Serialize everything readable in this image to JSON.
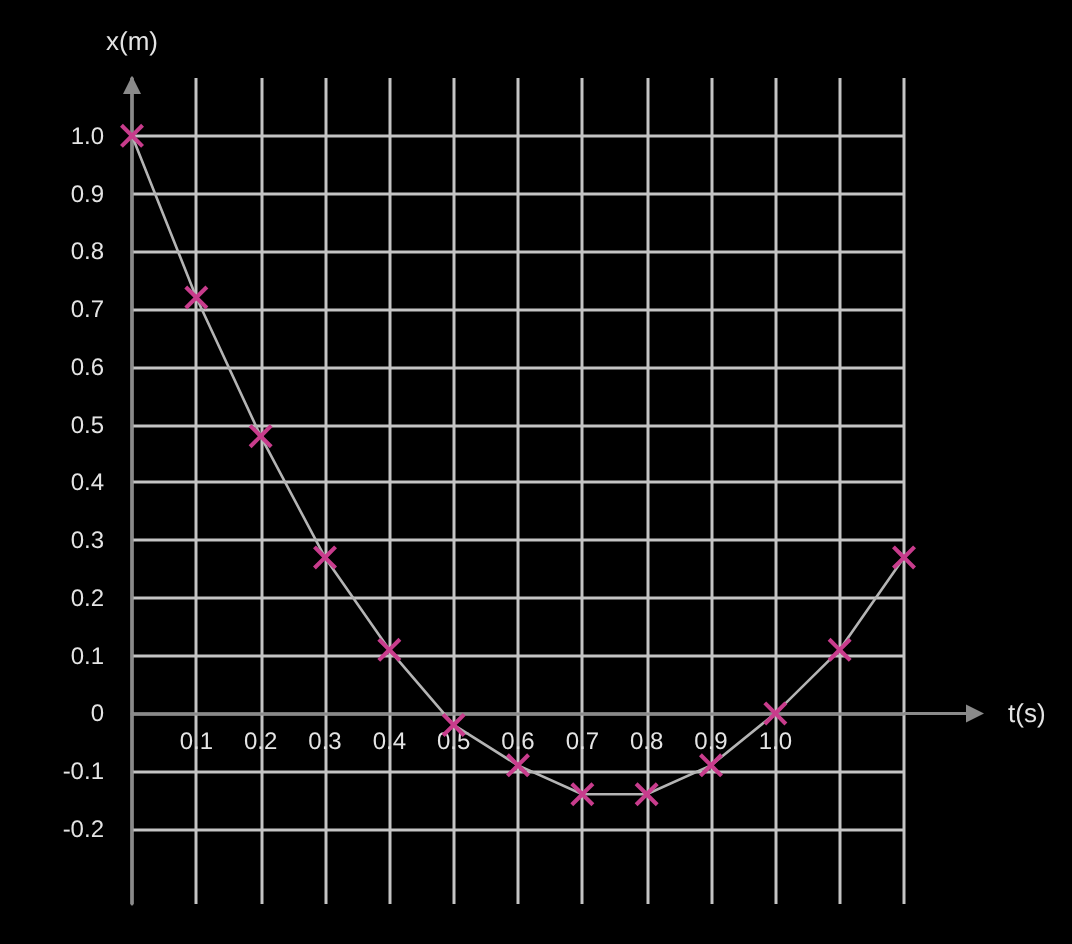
{
  "chart_data": {
    "type": "line",
    "xlabel": "t(s)",
    "ylabel": "x(m)",
    "x": [
      0,
      0.1,
      0.2,
      0.3,
      0.4,
      0.5,
      0.6,
      0.7,
      0.8,
      0.9,
      1.0,
      1.1,
      1.2
    ],
    "series": [
      {
        "color": "#b4b4b4",
        "colors": [
          "#c83c8c",
          "#c83c8c",
          "#c83c8c",
          "#c83c8c",
          "#c83c8c",
          "#c83c8c",
          "#c83c8c",
          "#c83c8c",
          "#c83c8c",
          "#c83c8c",
          "#c83c8c",
          "#c83c8c",
          "#c83c8c"
        ],
        "values": [
          1.0,
          0.72,
          0.48,
          0.27,
          0.11,
          -0.02,
          -0.09,
          -0.14,
          -0.14,
          -0.09,
          0,
          0.11,
          0.27
        ]
      }
    ],
    "xlim": [
      0,
      1.2
    ],
    "ylim": [
      -0.33,
      1.1
    ],
    "xticks": [
      {
        "value": 0,
        "label": null
      },
      0.1,
      0.2,
      0.3,
      0.4,
      0.5,
      0.6,
      0.7,
      0.8,
      0.9,
      {
        "value": 1,
        "label": "1.0"
      },
      {
        "value": 1.1,
        "label": null
      },
      {
        "value": 1.2,
        "label": null
      }
    ],
    "yticks": [
      -0.2,
      -0.1,
      0,
      0.1,
      0.2,
      0.3,
      0.4,
      0.5,
      0.6,
      0.7,
      0.8,
      0.9,
      {
        "value": 1,
        "label": "1.0"
      }
    ],
    "grid": true,
    "marker": "cross",
    "line_style": "solid"
  }
}
